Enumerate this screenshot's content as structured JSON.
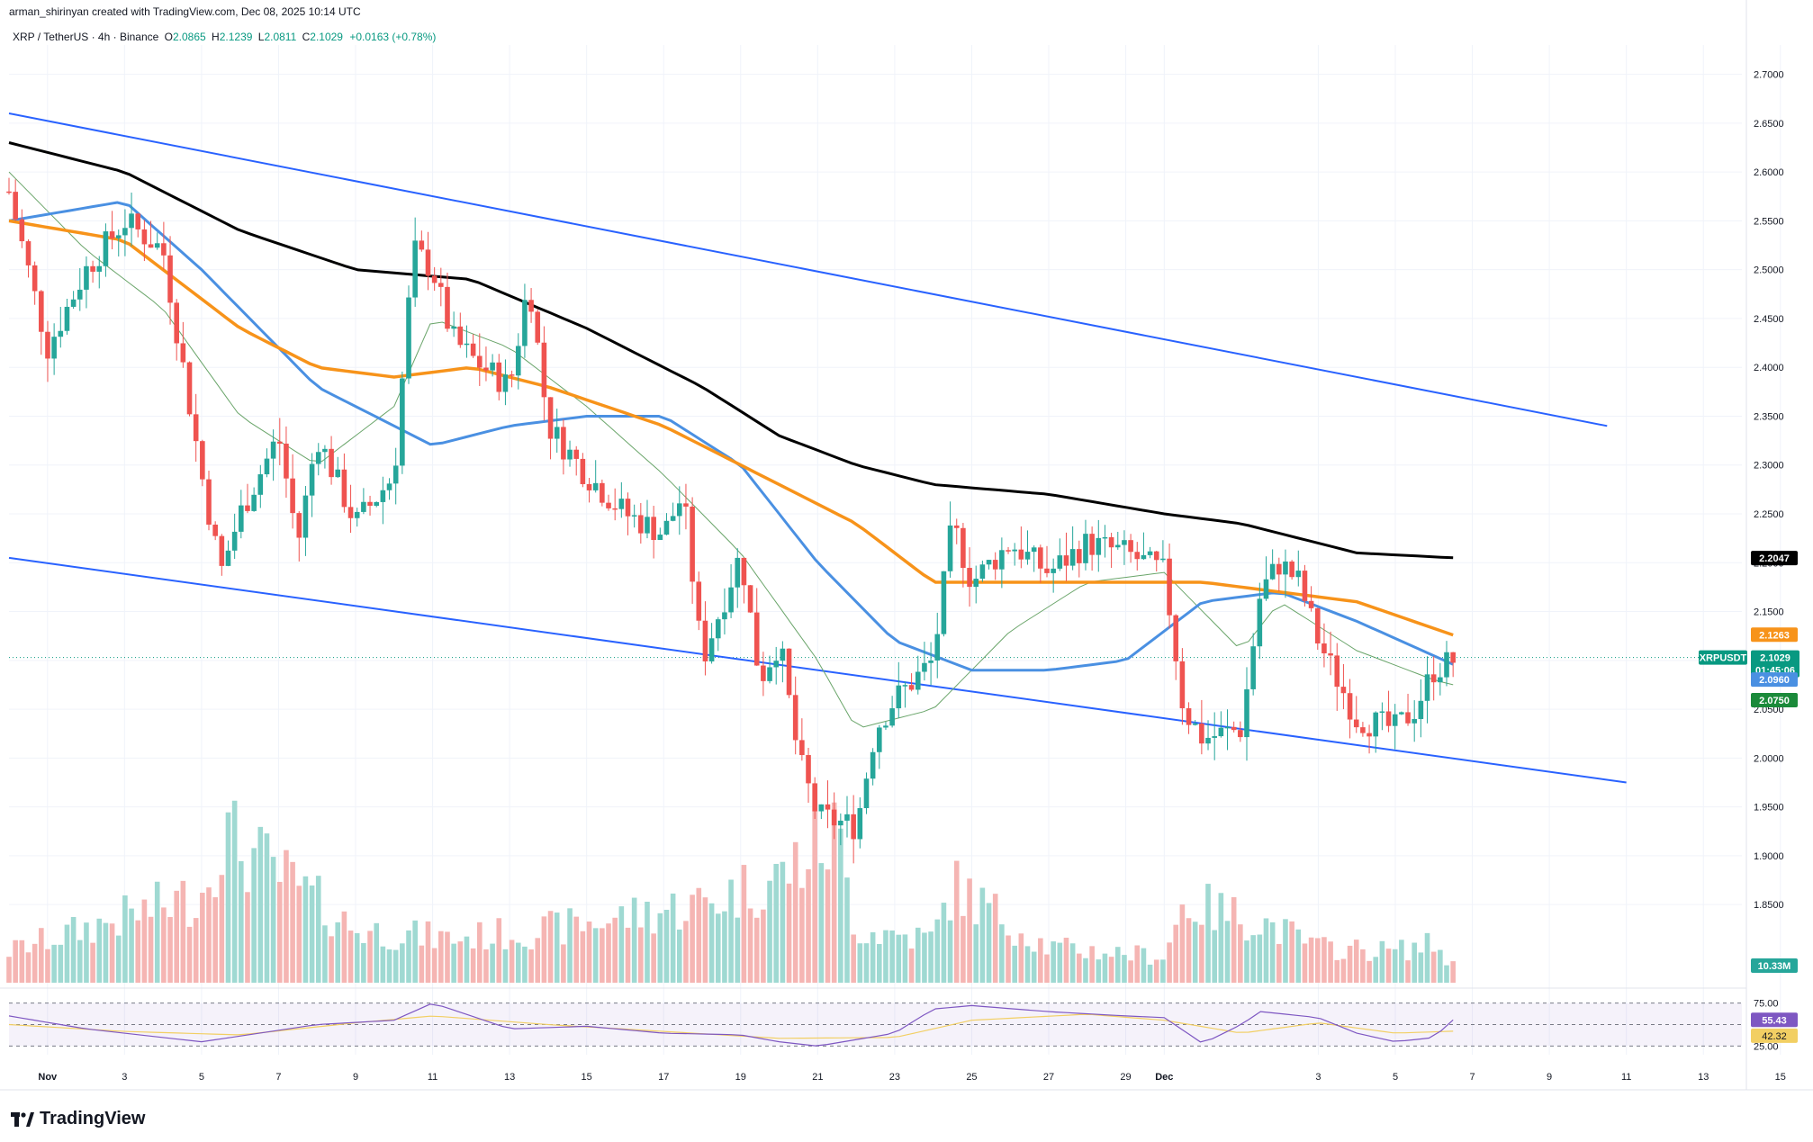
{
  "header": {
    "credit": "arman_shirinyan created with TradingView.com, Dec 08, 2025 10:14 UTC"
  },
  "symbol": {
    "title": "XRP / TetherUS · 4h · Binance",
    "open_label": "O",
    "open": "2.0865",
    "high_label": "H",
    "high": "2.1239",
    "low_label": "L",
    "low": "2.0811",
    "close_label": "C",
    "close": "2.1029",
    "change": "+0.0163 (+0.78%)"
  },
  "brand": {
    "name": "TradingView"
  },
  "colors": {
    "up": "#26a69a",
    "down": "#ef5350",
    "vol_up": "#9fd9d2",
    "vol_down": "#f5b5b3",
    "ma200": "#000000",
    "ma100": "#f7931a",
    "ma50": "#4a90e2",
    "ma20": "#6aa56a",
    "channel": "#2962ff",
    "rsi": "#7e57c2",
    "rsi_ma": "#f2cf63"
  },
  "chart_data": {
    "type": "candlestick",
    "title": "XRP / TetherUS · 4h · Binance",
    "ylim": [
      1.77,
      2.73
    ],
    "y_ticks": [
      "2.7000",
      "2.6500",
      "2.6000",
      "2.5500",
      "2.5000",
      "2.4500",
      "2.4000",
      "2.3500",
      "2.3000",
      "2.2500",
      "2.2000",
      "2.1500",
      "2.1000",
      "2.0500",
      "2.0000",
      "1.9500",
      "1.9000",
      "1.8500"
    ],
    "x_ticks": [
      "Nov",
      "3",
      "5",
      "7",
      "9",
      "11",
      "13",
      "15",
      "17",
      "19",
      "21",
      "23",
      "25",
      "27",
      "29",
      "Dec",
      "3",
      "5",
      "7",
      "9",
      "11",
      "13",
      "15"
    ],
    "x_start_day": 0,
    "x_end_day": 45,
    "candle_anchors": [
      [
        0,
        2.58
      ],
      [
        1,
        2.42
      ],
      [
        2,
        2.5
      ],
      [
        3,
        2.55
      ],
      [
        4,
        2.52
      ],
      [
        5,
        2.29
      ],
      [
        5.5,
        2.19
      ],
      [
        6,
        2.25
      ],
      [
        7,
        2.33
      ],
      [
        7.5,
        2.22
      ],
      [
        8,
        2.33
      ],
      [
        9,
        2.24
      ],
      [
        10,
        2.29
      ],
      [
        10.5,
        2.52
      ],
      [
        11,
        2.5
      ],
      [
        11.5,
        2.43
      ],
      [
        12,
        2.41
      ],
      [
        13,
        2.38
      ],
      [
        13.5,
        2.49
      ],
      [
        14,
        2.34
      ],
      [
        15,
        2.29
      ],
      [
        16,
        2.25
      ],
      [
        17,
        2.23
      ],
      [
        17.5,
        2.27
      ],
      [
        18,
        2.1
      ],
      [
        19,
        2.21
      ],
      [
        19.5,
        2.08
      ],
      [
        20,
        2.12
      ],
      [
        20.5,
        2.0
      ],
      [
        21,
        1.94
      ],
      [
        22,
        1.93
      ],
      [
        22.5,
        2.03
      ],
      [
        23,
        2.06
      ],
      [
        24,
        2.1
      ],
      [
        24.5,
        2.24
      ],
      [
        25,
        2.18
      ],
      [
        26,
        2.22
      ],
      [
        27,
        2.19
      ],
      [
        28,
        2.22
      ],
      [
        29,
        2.21
      ],
      [
        30,
        2.19
      ],
      [
        30.5,
        2.05
      ],
      [
        31,
        2.02
      ],
      [
        32,
        2.03
      ],
      [
        32.5,
        2.17
      ],
      [
        33,
        2.2
      ],
      [
        33.5,
        2.18
      ],
      [
        34,
        2.12
      ],
      [
        35,
        2.04
      ],
      [
        36,
        2.03
      ],
      [
        36.5,
        2.05
      ],
      [
        37,
        2.09
      ],
      [
        37.5,
        2.1
      ]
    ],
    "ma200": [
      [
        0,
        2.63
      ],
      [
        3,
        2.6
      ],
      [
        6,
        2.54
      ],
      [
        9,
        2.5
      ],
      [
        12,
        2.49
      ],
      [
        15,
        2.44
      ],
      [
        18,
        2.38
      ],
      [
        20,
        2.33
      ],
      [
        22,
        2.3
      ],
      [
        24,
        2.28
      ],
      [
        27,
        2.27
      ],
      [
        30,
        2.25
      ],
      [
        32,
        2.24
      ],
      [
        35,
        2.21
      ],
      [
        37.5,
        2.205
      ]
    ],
    "ma100": [
      [
        0,
        2.55
      ],
      [
        3,
        2.53
      ],
      [
        6,
        2.44
      ],
      [
        8,
        2.4
      ],
      [
        10,
        2.39
      ],
      [
        12,
        2.4
      ],
      [
        14,
        2.38
      ],
      [
        17,
        2.34
      ],
      [
        19,
        2.3
      ],
      [
        22,
        2.24
      ],
      [
        24,
        2.18
      ],
      [
        26,
        2.18
      ],
      [
        29,
        2.18
      ],
      [
        31,
        2.18
      ],
      [
        33,
        2.17
      ],
      [
        35,
        2.16
      ],
      [
        37.5,
        2.126
      ]
    ],
    "ma50": [
      [
        0,
        2.55
      ],
      [
        3,
        2.57
      ],
      [
        5,
        2.5
      ],
      [
        8,
        2.38
      ],
      [
        11,
        2.32
      ],
      [
        13,
        2.34
      ],
      [
        15,
        2.35
      ],
      [
        17,
        2.35
      ],
      [
        19,
        2.3
      ],
      [
        21,
        2.2
      ],
      [
        23,
        2.12
      ],
      [
        25,
        2.09
      ],
      [
        27,
        2.09
      ],
      [
        29,
        2.1
      ],
      [
        31,
        2.16
      ],
      [
        33,
        2.17
      ],
      [
        35,
        2.14
      ],
      [
        37.5,
        2.096
      ]
    ],
    "ma20": [
      [
        0,
        2.6
      ],
      [
        2,
        2.52
      ],
      [
        4,
        2.46
      ],
      [
        6,
        2.35
      ],
      [
        8,
        2.3
      ],
      [
        10,
        2.36
      ],
      [
        11,
        2.45
      ],
      [
        13,
        2.42
      ],
      [
        15,
        2.36
      ],
      [
        17,
        2.29
      ],
      [
        19,
        2.21
      ],
      [
        21,
        2.1
      ],
      [
        22,
        2.03
      ],
      [
        24,
        2.05
      ],
      [
        26,
        2.13
      ],
      [
        28,
        2.18
      ],
      [
        30,
        2.19
      ],
      [
        32,
        2.11
      ],
      [
        33,
        2.16
      ],
      [
        35,
        2.11
      ],
      [
        37,
        2.08
      ],
      [
        37.5,
        2.075
      ]
    ],
    "channel_upper": [
      [
        0,
        2.66
      ],
      [
        41.5,
        2.34
      ]
    ],
    "channel_lower": [
      [
        0,
        2.205
      ],
      [
        42,
        1.975
      ]
    ],
    "volume_anchors": [
      [
        0,
        0.18
      ],
      [
        5,
        0.5
      ],
      [
        5.5,
        0.85
      ],
      [
        9,
        0.3
      ],
      [
        11.5,
        0.25
      ],
      [
        14,
        0.3
      ],
      [
        18,
        0.45
      ],
      [
        20,
        0.6
      ],
      [
        21.5,
        0.85
      ],
      [
        22,
        0.3
      ],
      [
        24,
        0.25
      ],
      [
        24.5,
        0.55
      ],
      [
        27,
        0.2
      ],
      [
        30,
        0.15
      ],
      [
        30.5,
        0.45
      ],
      [
        32.5,
        0.35
      ],
      [
        34,
        0.2
      ],
      [
        36,
        0.18
      ],
      [
        37,
        0.22
      ],
      [
        37.5,
        0.1
      ]
    ],
    "rsi": [
      [
        0,
        60
      ],
      [
        2,
        45
      ],
      [
        4,
        35
      ],
      [
        5,
        30
      ],
      [
        8,
        50
      ],
      [
        10,
        55
      ],
      [
        11,
        75
      ],
      [
        13,
        45
      ],
      [
        15,
        48
      ],
      [
        17,
        40
      ],
      [
        19,
        38
      ],
      [
        20,
        30
      ],
      [
        21,
        25
      ],
      [
        23,
        40
      ],
      [
        24,
        68
      ],
      [
        25,
        72
      ],
      [
        27,
        65
      ],
      [
        29,
        60
      ],
      [
        30,
        58
      ],
      [
        31,
        28
      ],
      [
        32,
        50
      ],
      [
        32.5,
        65
      ],
      [
        34,
        58
      ],
      [
        35,
        40
      ],
      [
        36,
        30
      ],
      [
        37,
        35
      ],
      [
        37.5,
        55.43
      ]
    ],
    "rsi_ma": [
      [
        0,
        50
      ],
      [
        3,
        42
      ],
      [
        6,
        38
      ],
      [
        9,
        52
      ],
      [
        11,
        60
      ],
      [
        14,
        50
      ],
      [
        17,
        42
      ],
      [
        20,
        34
      ],
      [
        23,
        35
      ],
      [
        25,
        55
      ],
      [
        28,
        62
      ],
      [
        30,
        55
      ],
      [
        32,
        40
      ],
      [
        34,
        52
      ],
      [
        36,
        40
      ],
      [
        37.5,
        42.32
      ]
    ],
    "rsi_ticks": [
      "75.00",
      "25.00"
    ],
    "price_tags": {
      "ma200": "2.2047",
      "ma100": "2.1263",
      "symbol": "XRPUSDT",
      "last": "2.1029",
      "countdown": "01:45:06",
      "ma50": "2.0960",
      "ma20": "2.0750",
      "volume": "10.33M",
      "rsi": "55.43",
      "rsi_ma": "42.32"
    },
    "last_price": 2.1029
  }
}
